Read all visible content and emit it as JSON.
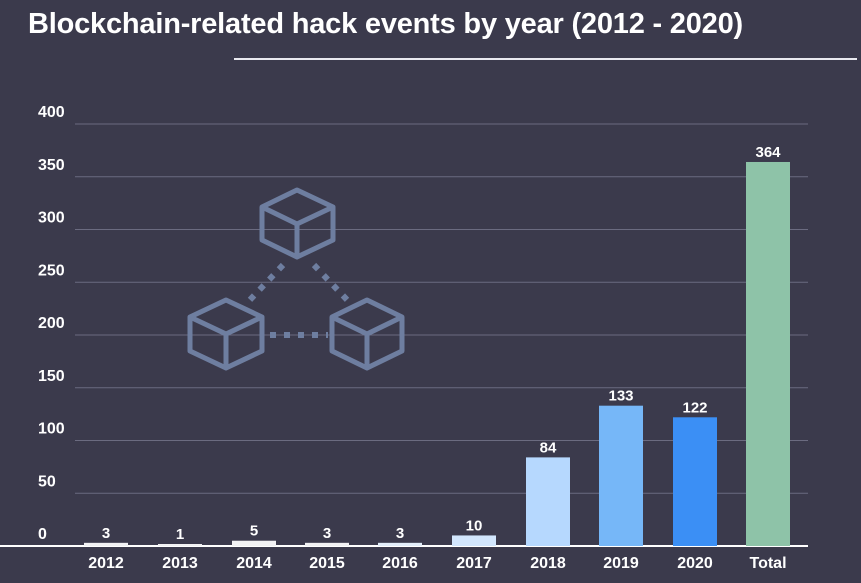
{
  "chart_data": {
    "type": "bar",
    "title": "Blockchain-related hack events by year (2012 - 2020)",
    "categories": [
      "2012",
      "2013",
      "2014",
      "2015",
      "2016",
      "2017",
      "2018",
      "2019",
      "2020",
      "Total"
    ],
    "values": [
      3,
      1,
      5,
      3,
      3,
      10,
      84,
      133,
      122,
      364
    ],
    "bar_colors": [
      "#f2f2f4",
      "#f2f2f4",
      "#f2f2f4",
      "#f2f2f4",
      "#e3eefa",
      "#d2e6fd",
      "#b6d8fe",
      "#76b7f8",
      "#3b8ff5",
      "#8ec3a8"
    ],
    "ylim": [
      0,
      400
    ],
    "yticks": [
      0,
      50,
      100,
      150,
      200,
      250,
      300,
      350,
      400
    ],
    "grid": true,
    "legend": "none",
    "xlabel": "",
    "ylabel": ""
  },
  "decoration": {
    "icon": "blockchain-network-icon",
    "icon_color": "#6e7ea0"
  }
}
